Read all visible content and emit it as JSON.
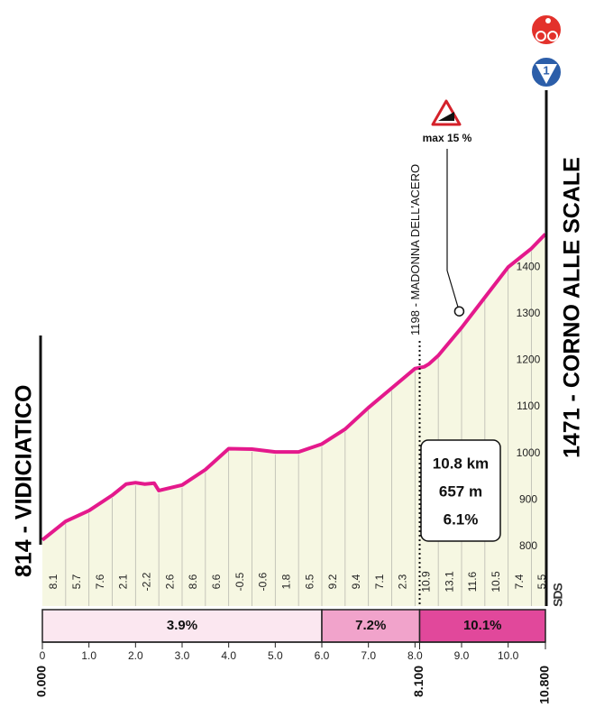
{
  "chart_data": {
    "type": "area",
    "start_label": "814 - VIDICIATICO",
    "finish_label": "1471 - CORNO ALLE SCALE",
    "x": [
      0,
      0.5,
      1.0,
      1.5,
      1.8,
      2.0,
      2.2,
      2.4,
      2.5,
      3.0,
      3.5,
      4.0,
      4.5,
      5.0,
      5.5,
      6.0,
      6.5,
      7.0,
      7.5,
      8.0,
      8.2,
      8.3,
      8.5,
      9.0,
      9.5,
      10.0,
      10.5,
      10.8
    ],
    "values": [
      814,
      854,
      877,
      910,
      934,
      937,
      934,
      936,
      920,
      932,
      965,
      1010,
      1009,
      1003,
      1003,
      1020,
      1052,
      1098,
      1140,
      1182,
      1186,
      1192,
      1210,
      1270,
      1335,
      1400,
      1440,
      1471
    ],
    "color": "#e4198c",
    "fill": "#f6f7e2",
    "xlim": [
      0,
      10.8
    ],
    "ylim": [
      672,
      1780
    ],
    "yticks": [
      800,
      900,
      1000,
      1100,
      1200,
      1300,
      1400
    ],
    "xticks": [
      0,
      {
        "value": 1,
        "label": "1.0"
      },
      {
        "value": 2,
        "label": "2.0"
      },
      {
        "value": 3,
        "label": "3.0"
      },
      {
        "value": 4,
        "label": "4.0"
      },
      {
        "value": 5,
        "label": "5.0"
      },
      {
        "value": 6,
        "label": "6.0"
      },
      {
        "value": 7,
        "label": "7.0"
      },
      {
        "value": 8,
        "label": "8.0"
      },
      {
        "value": 9,
        "label": "9.0"
      },
      {
        "value": 10,
        "label": "10.0"
      }
    ],
    "km_markers": [
      {
        "value": 0,
        "label": "0.000"
      },
      {
        "value": 8.1,
        "label": "8.100"
      },
      {
        "value": 10.8,
        "label": "10.800"
      }
    ],
    "segment_gradients": [
      8.1,
      5.7,
      7.6,
      2.1,
      -2.2,
      2.6,
      8.6,
      6.6,
      -0.5,
      -0.6,
      1.8,
      6.5,
      9.2,
      9.4,
      7.1,
      2.3,
      10.9,
      13.1,
      11.6,
      10.5,
      7.4,
      5.5
    ],
    "segment_length": 0.5,
    "sections": [
      {
        "from": 0,
        "to": 6,
        "value": 3.9,
        "value_label": "3.9%",
        "color": "#fbe7f0"
      },
      {
        "from": 6,
        "to": 8.1,
        "value": 7.2,
        "value_label": "7.2%",
        "color": "#f1a3cb"
      },
      {
        "from": 8.1,
        "to": 10.8,
        "value": 10.1,
        "value_label": "10.1%",
        "color": "#e1489b"
      }
    ],
    "waypoint": {
      "x": 8.1,
      "label": "1198 - MADONNA DELL'ACERO"
    },
    "max_gradient": {
      "x": 8.95,
      "y": 1305,
      "label": "max 15 %"
    },
    "summary": [
      "10.8 km",
      "657 m",
      "6.1%"
    ],
    "stage_badge": "1",
    "logo": "SDS"
  }
}
